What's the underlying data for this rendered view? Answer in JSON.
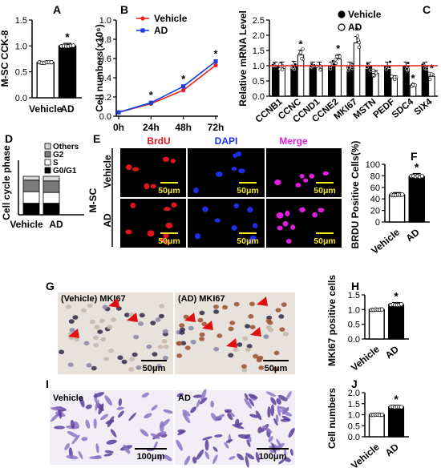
{
  "colors": {
    "vehicle_line": "#e8201e",
    "ad_line": "#1a3fe0",
    "threshold": "#d9261c",
    "bar_black": "#000000",
    "bar_white": "#ffffff",
    "brdu_red": "#e0141e",
    "dapi_blue": "#1e2ee6",
    "merge_magenta": "#e01ee0",
    "scalebar_yellow": "#f4e81e",
    "ihc_bg": "#e8e2dc",
    "crystal_bg": "#f2eef6",
    "arrow_red": "#e01010"
  },
  "panels": {
    "a": "A",
    "b": "B",
    "c": "C",
    "d": "D",
    "e": "E",
    "f": "F",
    "g": "G",
    "h": "H",
    "i": "I",
    "j": "J"
  },
  "chart_data": [
    {
      "id": "A",
      "type": "bar",
      "categories": [
        "Vehicle",
        "AD"
      ],
      "values": [
        0.68,
        1.0
      ],
      "errors": [
        0.02,
        0.05
      ],
      "significance": [
        "",
        "*"
      ],
      "ylabel": "M-SC CCK-8",
      "ylim": [
        0,
        1.5
      ],
      "yticks": [
        "0.0",
        "0.5",
        "1.0",
        "1.5"
      ]
    },
    {
      "id": "B",
      "type": "line",
      "x": [
        "0h",
        "24h",
        "48h",
        "72h"
      ],
      "series": [
        {
          "name": "Vehicle",
          "values": [
            0.04,
            0.13,
            0.27,
            0.53
          ]
        },
        {
          "name": "AD",
          "values": [
            0.04,
            0.14,
            0.31,
            0.57
          ]
        }
      ],
      "significance": [
        "",
        "*",
        "*",
        "*"
      ],
      "ylabel": "Cell numbers(x10⁶)",
      "ylim": [
        0,
        1.0
      ],
      "yticks": [
        "0.0",
        "0.2",
        "0.4",
        "0.6",
        "0.8",
        "1.0"
      ],
      "legend": "top-left"
    },
    {
      "id": "C",
      "type": "bar",
      "categories": [
        "CCNB1",
        "CCNC",
        "CCND1",
        "CCNE2",
        "MKI67",
        "MSTN",
        "PEDF",
        "SDC4",
        "SIX4"
      ],
      "series": [
        {
          "name": "Vehicle",
          "values": [
            1.0,
            1.02,
            1.0,
            1.0,
            1.0,
            1.0,
            1.0,
            1.0,
            1.0
          ]
        },
        {
          "name": "AD",
          "values": [
            1.0,
            1.35,
            1.0,
            1.22,
            1.75,
            0.75,
            0.6,
            0.35,
            0.65
          ]
        }
      ],
      "significance": [
        "",
        "*",
        "",
        "*",
        "*",
        "",
        "",
        "*",
        "*"
      ],
      "ylabel": "Relative mRNA Level",
      "ylim": [
        0,
        2.5
      ],
      "yticks": [
        "0.0",
        "0.5",
        "1.0",
        "1.5",
        "2.0",
        "2.5"
      ],
      "threshold": 1.0,
      "legend": "top-left"
    },
    {
      "id": "D",
      "type": "bar",
      "categories": [
        "Vehicle",
        "AD"
      ],
      "stack_order": [
        "G0/G1",
        "S",
        "G2",
        "Others"
      ],
      "series": [
        {
          "name": "Others",
          "values": [
            10,
            12
          ]
        },
        {
          "name": "G2",
          "values": [
            30,
            30
          ]
        },
        {
          "name": "S",
          "values": [
            30,
            28
          ]
        },
        {
          "name": "G0/G1",
          "values": [
            30,
            30
          ]
        }
      ],
      "ylabel": "Cell cycle phase",
      "legend": "top"
    },
    {
      "id": "F",
      "type": "bar",
      "categories": [
        "Vehicle",
        "AD"
      ],
      "values": [
        47,
        79
      ],
      "errors": [
        4,
        5
      ],
      "significance": [
        "",
        "*"
      ],
      "ylabel": "BRDU Positive Cells(%)",
      "ylim": [
        0,
        100
      ],
      "yticks": [
        "0",
        "20",
        "40",
        "60",
        "80",
        "100"
      ]
    },
    {
      "id": "H",
      "type": "bar",
      "categories": [
        "Vehicle",
        "AD"
      ],
      "values": [
        1.0,
        1.17
      ],
      "errors": [
        0.03,
        0.07
      ],
      "significance": [
        "",
        "*"
      ],
      "ylabel": "MKI67 positive cells",
      "ylim": [
        0,
        1.5
      ],
      "yticks": [
        "0.0",
        "0.5",
        "1.0",
        "1.5"
      ]
    },
    {
      "id": "J",
      "type": "bar",
      "categories": [
        "Vehicle",
        "AD"
      ],
      "values": [
        1.0,
        1.35
      ],
      "errors": [
        0.05,
        0.07
      ],
      "significance": [
        "",
        "*"
      ],
      "ylabel": "Cell numbers",
      "ylim": [
        0,
        2.0
      ],
      "yticks": [
        "0.0",
        "0.5",
        "1.0",
        "1.5",
        "2.0"
      ]
    }
  ],
  "micrographs": {
    "E": {
      "columns": [
        "BrdU",
        "DAPI",
        "Merge"
      ],
      "rows": [
        "Vehicle",
        "AD"
      ],
      "group": "M-SC",
      "scale": "50μm"
    },
    "G": {
      "labels": [
        "(Vehicle) MKI67",
        "(AD) MKI67"
      ],
      "scale": [
        "50μm",
        "50μm"
      ]
    },
    "I": {
      "labels": [
        "Vehicle",
        "AD"
      ],
      "scale": [
        "100μm",
        "100μm"
      ]
    }
  }
}
